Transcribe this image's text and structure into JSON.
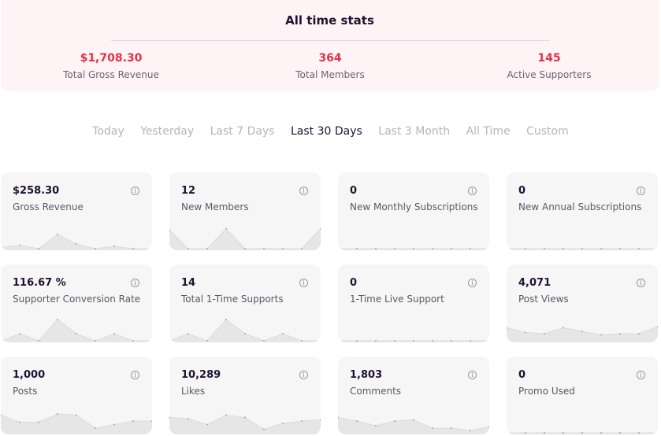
{
  "all_time": {
    "title": "All time stats",
    "stats": [
      {
        "value": "$1,708.30",
        "label": "Total Gross Revenue"
      },
      {
        "value": "364",
        "label": "Total Members"
      },
      {
        "value": "145",
        "label": "Active Supporters"
      }
    ]
  },
  "filters": [
    "Today",
    "Yesterday",
    "Last 7 Days",
    "Last 30 Days",
    "Last 3 Month",
    "All Time",
    "Custom"
  ],
  "active_filter": "Last 30 Days",
  "colors": {
    "accent": "#e03347",
    "card_bg": "#f6f6f6",
    "spark_fill": "#e6e6e6",
    "spark_line": "#dcdcdc"
  },
  "cards": [
    {
      "value": "$258.30",
      "label": "Gross Revenue",
      "spark": [
        0.05,
        0.15,
        0.0,
        0.6,
        0.2,
        0.0,
        0.1,
        0.0,
        0.0
      ]
    },
    {
      "value": "12",
      "label": "New Members",
      "spark": [
        0.8,
        0.0,
        0.0,
        0.85,
        0.0,
        0.0,
        0.0,
        0.0,
        0.85
      ]
    },
    {
      "value": "0",
      "label": "New Monthly Subscriptions",
      "spark": [
        0,
        0,
        0,
        0,
        0,
        0,
        0,
        0,
        0
      ]
    },
    {
      "value": "0",
      "label": "New Annual Subscriptions",
      "spark": [
        0,
        0,
        0,
        0,
        0,
        0,
        0,
        0,
        0
      ]
    },
    {
      "value": "116.67 %",
      "label": "Supporter Conversion Rate",
      "spark": [
        0.0,
        0.3,
        0.0,
        0.9,
        0.3,
        0.0,
        0.3,
        0.0,
        0.0
      ]
    },
    {
      "value": "14",
      "label": "Total 1-Time Supports",
      "spark": [
        0.0,
        0.3,
        0.0,
        0.9,
        0.3,
        0.0,
        0.3,
        0.0,
        0.0
      ]
    },
    {
      "value": "0",
      "label": "1-Time Live Support",
      "spark": [
        0,
        0,
        0,
        0,
        0,
        0,
        0,
        0,
        0
      ]
    },
    {
      "value": "4,071",
      "label": "Post Views",
      "spark": [
        0.55,
        0.35,
        0.3,
        0.55,
        0.4,
        0.25,
        0.3,
        0.3,
        0.6
      ]
    },
    {
      "value": "1,000",
      "label": "Posts",
      "spark": [
        0.75,
        0.45,
        0.45,
        0.8,
        0.75,
        0.2,
        0.35,
        0.5,
        0.5
      ]
    },
    {
      "value": "10,289",
      "label": "Likes",
      "spark": [
        0.65,
        0.6,
        0.35,
        0.75,
        0.65,
        0.15,
        0.4,
        0.5,
        0.55
      ]
    },
    {
      "value": "1,803",
      "label": "Comments",
      "spark": [
        0.65,
        0.5,
        0.3,
        0.5,
        0.55,
        0.2,
        0.2,
        0.1,
        0.25
      ]
    },
    {
      "value": "0",
      "label": "Promo Used",
      "spark": [
        0,
        0,
        0,
        0,
        0,
        0,
        0,
        0,
        0
      ]
    }
  ]
}
